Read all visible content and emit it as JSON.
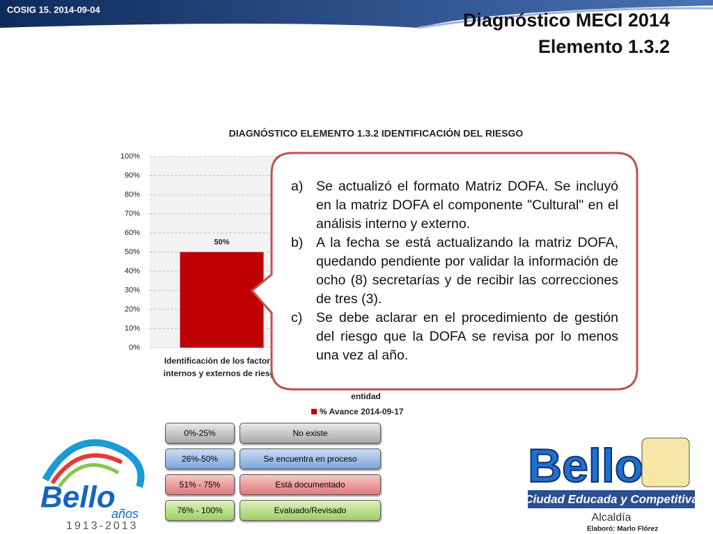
{
  "header": {
    "tag": "COSIG 15. 2014-09-04",
    "title": "Diagnóstico MECI 2014",
    "subtitle": "Elemento 1.3.2"
  },
  "chart_data": {
    "type": "bar",
    "title": "DIAGNÓSTICO ELEMENTO 1.3.2 IDENTIFICACIÓN DEL RIESGO",
    "categories": [
      "Identificación de los factores internos y externos de riesgo",
      "entidad"
    ],
    "series": [
      {
        "name": "% Avance 2014-09-17",
        "color": "#c00000",
        "values": [
          50,
          null
        ],
        "value_labels": [
          "50%",
          null
        ]
      }
    ],
    "ylim": [
      0,
      100
    ],
    "yticks": [
      {
        "value": 0,
        "label": "0%"
      },
      {
        "value": 10,
        "label": "10%"
      },
      {
        "value": 20,
        "label": "20%"
      },
      {
        "value": 30,
        "label": "30%"
      },
      {
        "value": 40,
        "label": "40%"
      },
      {
        "value": 50,
        "label": "50%"
      },
      {
        "value": 60,
        "label": "60%"
      },
      {
        "value": 70,
        "label": "70%"
      },
      {
        "value": 80,
        "label": "80%"
      },
      {
        "value": 90,
        "label": "90%"
      },
      {
        "value": 100,
        "label": "100%"
      }
    ],
    "grid": true,
    "legend": "bottom"
  },
  "callout": {
    "items": [
      {
        "marker": "a)",
        "text": "Se actualizó el formato Matriz DOFA. Se incluyó en la matriz DOFA el componente \"Cultural\" en el análisis interno y externo."
      },
      {
        "marker": "b)",
        "text": "A la fecha se está actualizando la matriz DOFA, quedando pendiente por validar la información de ocho (8) secretarías y de recibir las correcciones de tres (3)."
      },
      {
        "marker": "c)",
        "text": "Se debe aclarar en el procedimiento de gestión del riesgo que la DOFA se revisa por lo menos una vez al año."
      }
    ]
  },
  "scale": [
    {
      "range": "0%-25%",
      "label": "No existe"
    },
    {
      "range": "26%-50%",
      "label": "Se encuentra en proceso"
    },
    {
      "range": "51% - 75%",
      "label": "Está documentado"
    },
    {
      "range": "76% - 100%",
      "label": "Evaluado/Revisado"
    }
  ],
  "logo_left": {
    "name": "Bello",
    "years_word": "años",
    "years": "1913-2013"
  },
  "logo_right": {
    "name": "Bello",
    "slogan": "Ciudad Educada y Competitiva",
    "office": "Alcaldía",
    "author": "Elaboró: Marlo Flórez"
  }
}
